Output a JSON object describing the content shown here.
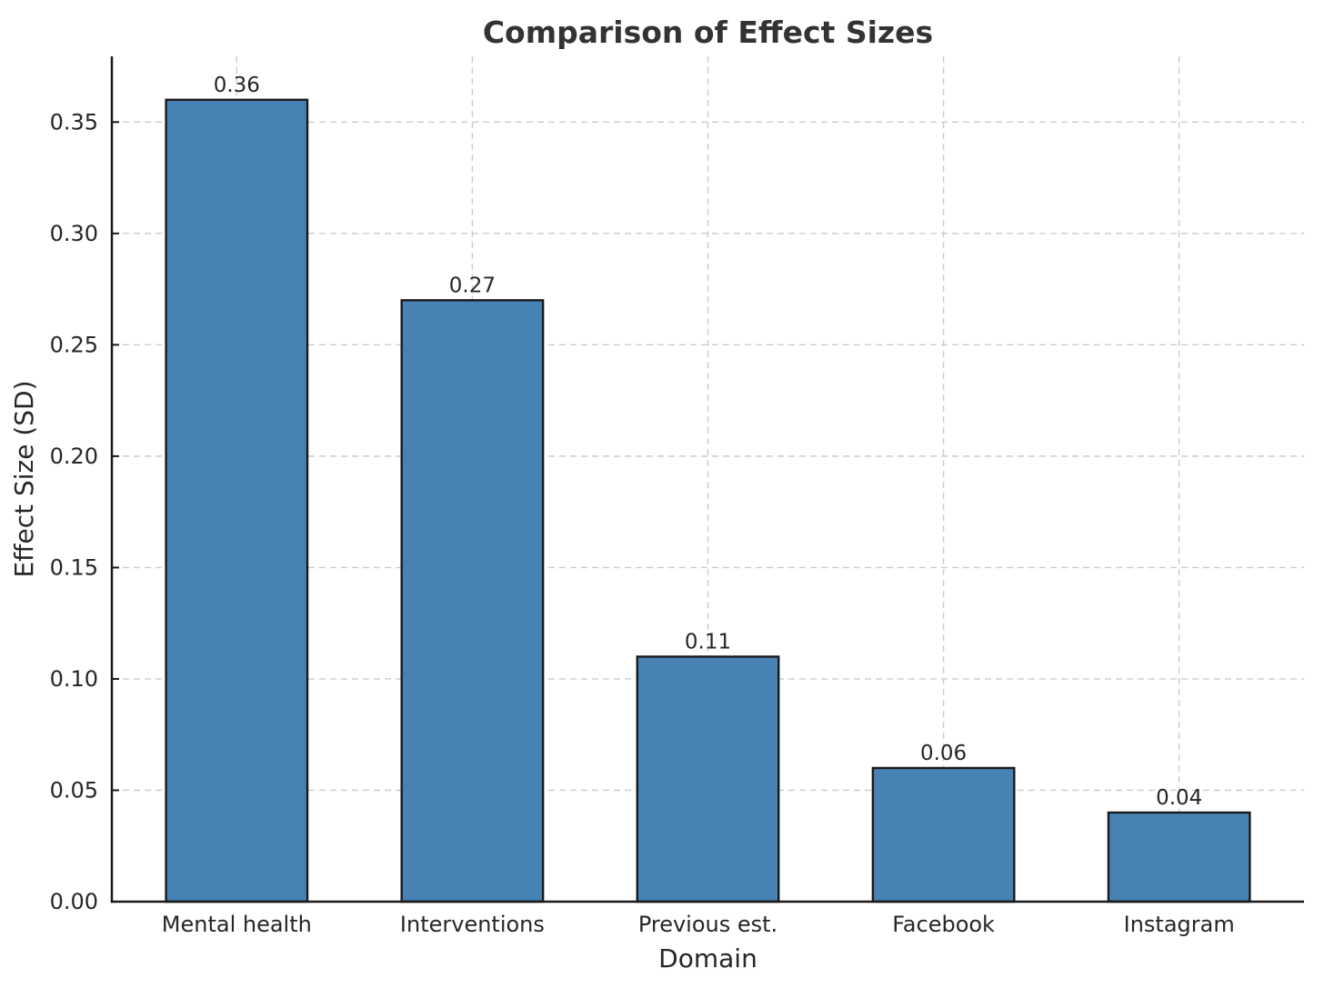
{
  "figure": {
    "background": "#ffffff"
  },
  "chart_data": {
    "type": "bar",
    "title": "Comparison of Effect Sizes",
    "xlabel": "Domain",
    "ylabel": "Effect Size (SD)",
    "categories": [
      "Mental health",
      "Interventions",
      "Previous est.",
      "Facebook",
      "Instagram"
    ],
    "values": [
      0.36,
      0.27,
      0.11,
      0.06,
      0.04
    ],
    "value_labels": [
      "0.36",
      "0.27",
      "0.11",
      "0.06",
      "0.04"
    ],
    "yticks": [
      0.0,
      0.05,
      0.1,
      0.15,
      0.2,
      0.25,
      0.3,
      0.35
    ],
    "ytick_labels": [
      "0.00",
      "0.05",
      "0.10",
      "0.15",
      "0.20",
      "0.25",
      "0.30",
      "0.35"
    ],
    "ylim": [
      0,
      0.3795
    ],
    "grid": true,
    "grid_style": "dashed",
    "legend": "none",
    "colors": {
      "bar_fill": "#4682B4",
      "bar_edge": "#1a1a1a",
      "grid": "#cccccc",
      "spine": "#1a1a1a",
      "text": "#262626",
      "title": "#333333"
    },
    "bar_width_fraction": 0.6
  }
}
